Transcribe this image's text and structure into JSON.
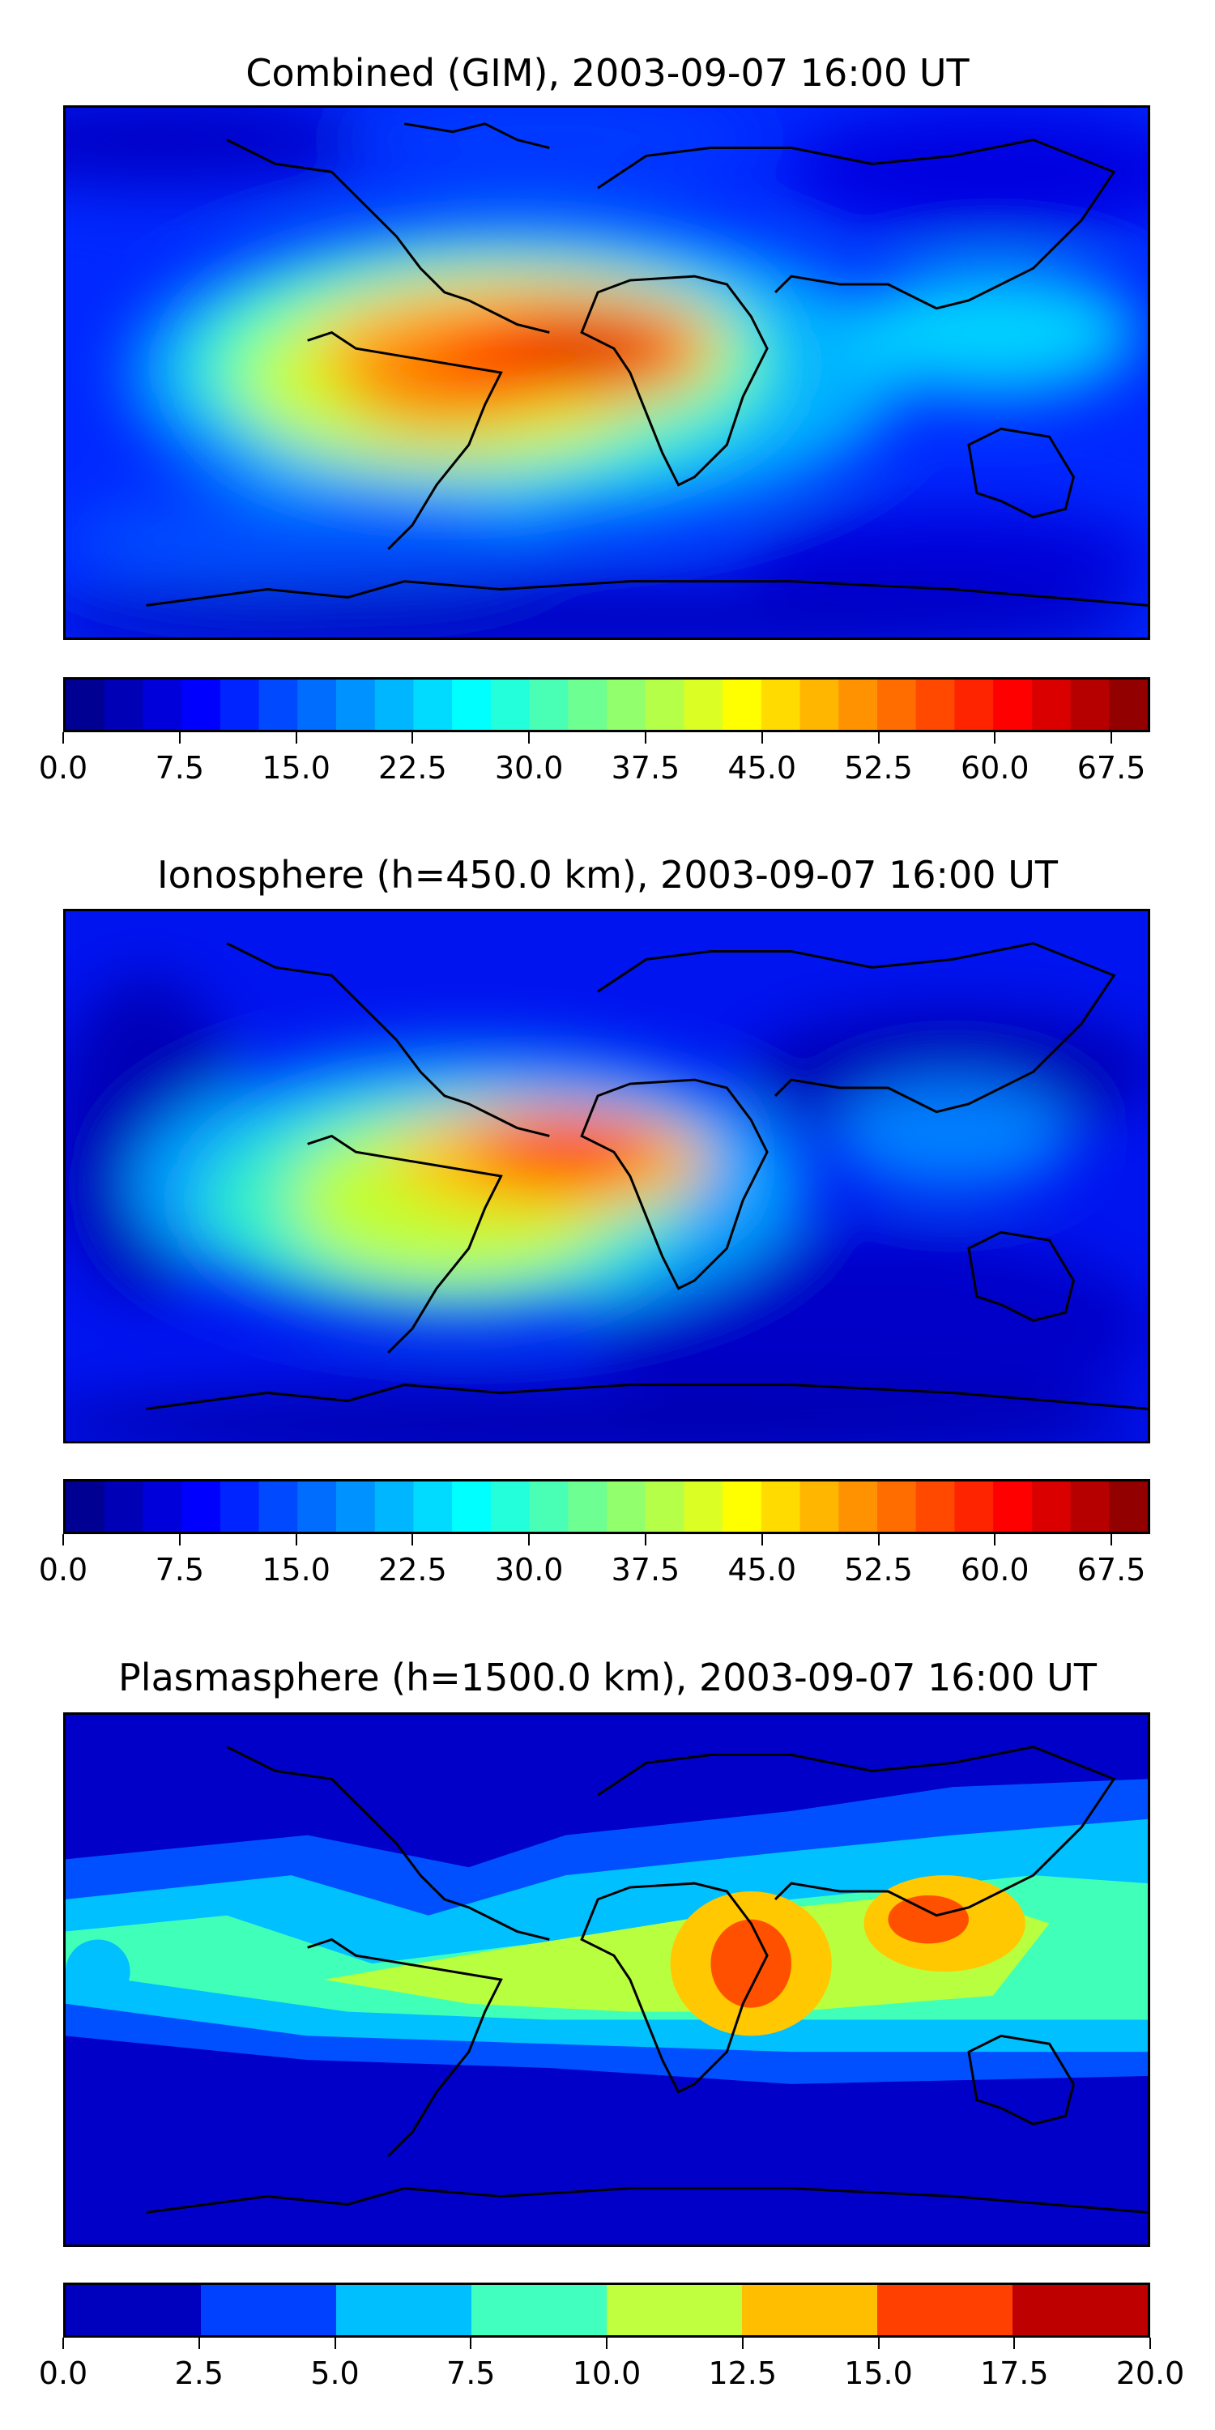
{
  "panels": [
    {
      "title": "Combined (GIM), 2003-09-07 16:00 UT",
      "colorbar": {
        "min": 0,
        "max": 70,
        "levels": 28,
        "tick_labels": [
          "0.0",
          "7.5",
          "15.0",
          "22.5",
          "30.0",
          "37.5",
          "45.0",
          "52.5",
          "60.0",
          "67.5"
        ]
      }
    },
    {
      "title": "Ionosphere  (h=450.0 km), 2003-09-07 16:00 UT",
      "colorbar": {
        "min": 0,
        "max": 70,
        "levels": 28,
        "tick_labels": [
          "0.0",
          "7.5",
          "15.0",
          "22.5",
          "30.0",
          "37.5",
          "45.0",
          "52.5",
          "60.0",
          "67.5"
        ]
      }
    },
    {
      "title": "Plasmasphere (h=1500.0 km), 2003-09-07 16:00 UT",
      "colorbar": {
        "min": 0,
        "max": 20,
        "levels": 8,
        "tick_labels": [
          "0.0",
          "2.5",
          "5.0",
          "7.5",
          "10.0",
          "12.5",
          "15.0",
          "17.5",
          "20.0"
        ]
      }
    }
  ],
  "chart_data": [
    {
      "type": "heatmap",
      "title": "Combined (GIM), 2003-09-07 16:00 UT",
      "colormap": "jet",
      "zlim": [
        0,
        70
      ],
      "colorbar_ticks": [
        0.0,
        7.5,
        15.0,
        22.5,
        30.0,
        37.5,
        45.0,
        52.5,
        60.0,
        67.5
      ]
    },
    {
      "type": "heatmap",
      "title": "Ionosphere  (h=450.0 km), 2003-09-07 16:00 UT",
      "colormap": "jet",
      "zlim": [
        0,
        70
      ],
      "colorbar_ticks": [
        0.0,
        7.5,
        15.0,
        22.5,
        30.0,
        37.5,
        45.0,
        52.5,
        60.0,
        67.5
      ]
    },
    {
      "type": "heatmap",
      "title": "Plasmasphere (h=1500.0 km), 2003-09-07 16:00 UT",
      "colormap": "jet",
      "zlim": [
        0,
        20
      ],
      "colorbar_ticks": [
        0.0,
        2.5,
        5.0,
        7.5,
        10.0,
        12.5,
        15.0,
        17.5,
        20.0
      ]
    }
  ]
}
